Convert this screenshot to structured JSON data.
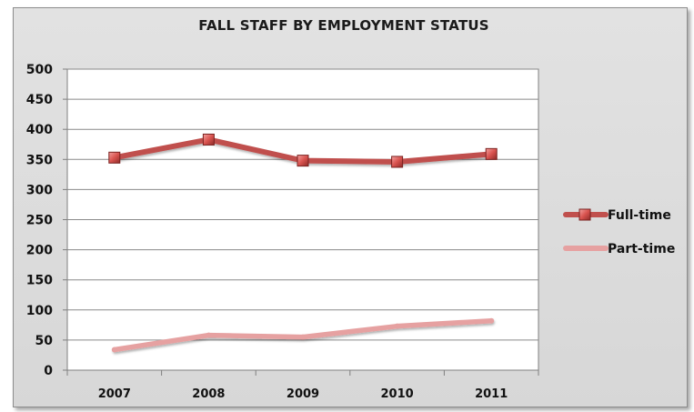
{
  "chart_data": {
    "type": "line",
    "title": "FALL STAFF BY EMPLOYMENT STATUS",
    "xlabel": "",
    "ylabel": "",
    "categories": [
      "2007",
      "2008",
      "2009",
      "2010",
      "2011"
    ],
    "ylim": [
      0,
      500
    ],
    "yticks": [
      0,
      50,
      100,
      150,
      200,
      250,
      300,
      350,
      400,
      450,
      500
    ],
    "grid": true,
    "legend_position": "right",
    "series": [
      {
        "name": "Full-time",
        "values": [
          353,
          383,
          348,
          346,
          359
        ],
        "color": "#c0504d",
        "marker": "square"
      },
      {
        "name": "Part-time",
        "values": [
          34,
          58,
          55,
          73,
          82
        ],
        "color": "#e6a1a1",
        "marker": "none"
      }
    ]
  }
}
